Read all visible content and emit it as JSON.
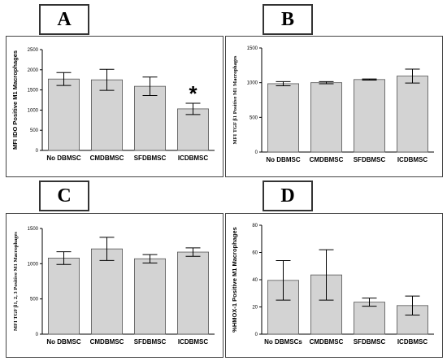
{
  "panels": [
    {
      "label": "A",
      "chart_data": {
        "type": "bar",
        "ylabel": "MFI IDO Positive M1 Macrophages",
        "categories": [
          "No DBMSC",
          "CMDBMSC",
          "SFDBMSC",
          "ICDBMSC"
        ],
        "values": [
          1770,
          1750,
          1590,
          1030
        ],
        "errors": [
          160,
          260,
          230,
          140
        ],
        "ylim": [
          0,
          2500
        ],
        "yticks": [
          "0",
          "500",
          "1000",
          "1500",
          "2000",
          "2500"
        ],
        "annotations": [
          {
            "category": "ICDBMSC",
            "text": "*"
          }
        ]
      }
    },
    {
      "label": "B",
      "chart_data": {
        "type": "bar",
        "ylabel": "MFI TGF β1 Positive M1 Macrophages",
        "categories": [
          "No DBMSC",
          "CMDBMSC",
          "SFDBMSC",
          "ICDBMSC"
        ],
        "values": [
          985,
          1000,
          1045,
          1095
        ],
        "errors": [
          30,
          15,
          8,
          100
        ],
        "ylim": [
          0,
          1500
        ],
        "yticks": [
          "0",
          "500",
          "1000",
          "1500"
        ],
        "annotations": []
      }
    },
    {
      "label": "C",
      "chart_data": {
        "type": "bar",
        "ylabel": "MFI TGF β1, 2, 3 Positive M1 Macrophages",
        "categories": [
          "No DBMSC",
          "CMDBMSC",
          "SFDBMSC",
          "ICDBMSC"
        ],
        "values": [
          1080,
          1210,
          1070,
          1165
        ],
        "errors": [
          90,
          165,
          60,
          60
        ],
        "ylim": [
          0,
          1500
        ],
        "yticks": [
          "0",
          "500",
          "1000",
          "1500"
        ],
        "annotations": []
      }
    },
    {
      "label": "D",
      "chart_data": {
        "type": "bar",
        "ylabel": "%HMOX-1 Positive M1 Macrophages",
        "categories": [
          "No DBMSCs",
          "CMDBMSC",
          "SFDBMSC",
          "ICDBMSC"
        ],
        "values": [
          39.5,
          43.5,
          23.5,
          21
        ],
        "errors": [
          14.5,
          18.5,
          3,
          7
        ],
        "ylim": [
          0,
          80
        ],
        "yticks": [
          "0",
          "20",
          "40",
          "60",
          "80"
        ],
        "annotations": []
      }
    }
  ],
  "colors": {
    "bar_fill": "#d3d3d3",
    "bar_stroke": "#555555",
    "axis": "#000000"
  }
}
